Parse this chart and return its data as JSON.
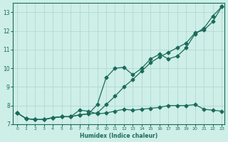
{
  "xlabel": "Humidex (Indice chaleur)",
  "background_color": "#ceeee8",
  "grid_color": "#aed4ce",
  "line_color": "#1a6b5a",
  "xlim": [
    -0.5,
    23.3
  ],
  "ylim": [
    7.0,
    13.5
  ],
  "yticks": [
    7,
    8,
    9,
    10,
    11,
    12,
    13
  ],
  "xticks": [
    0,
    1,
    2,
    3,
    4,
    5,
    6,
    7,
    8,
    9,
    10,
    11,
    12,
    13,
    14,
    15,
    16,
    17,
    18,
    19,
    20,
    21,
    22,
    23
  ],
  "series1_x": [
    0,
    1,
    2,
    3,
    4,
    5,
    6,
    7,
    8,
    9,
    10,
    11,
    12,
    13,
    14,
    15,
    16,
    17,
    18,
    19,
    20,
    21,
    22,
    23
  ],
  "series1_y": [
    7.6,
    7.3,
    7.25,
    7.25,
    7.35,
    7.4,
    7.4,
    7.5,
    7.55,
    8.05,
    9.5,
    10.0,
    10.05,
    9.65,
    10.0,
    10.5,
    10.75,
    10.5,
    10.65,
    11.1,
    11.85,
    12.15,
    12.8,
    13.3
  ],
  "series2_x": [
    0,
    1,
    2,
    3,
    4,
    5,
    6,
    7,
    8,
    9,
    10,
    11,
    12,
    13,
    14,
    15,
    16,
    17,
    18,
    19,
    20,
    21,
    22,
    23
  ],
  "series2_y": [
    7.6,
    7.3,
    7.25,
    7.25,
    7.35,
    7.4,
    7.4,
    7.5,
    7.55,
    7.6,
    8.05,
    8.5,
    9.0,
    9.4,
    9.85,
    10.3,
    10.6,
    10.85,
    11.1,
    11.35,
    11.9,
    12.05,
    12.5,
    13.3
  ],
  "series3_x": [
    0,
    1,
    2,
    3,
    4,
    5,
    6,
    7,
    8,
    9,
    10,
    11,
    12,
    13,
    14,
    15,
    16,
    17,
    18,
    19,
    20,
    21,
    22,
    23
  ],
  "series3_y": [
    7.6,
    7.3,
    7.25,
    7.25,
    7.35,
    7.4,
    7.4,
    7.75,
    7.7,
    7.55,
    7.6,
    7.7,
    7.8,
    7.75,
    7.8,
    7.85,
    7.9,
    8.0,
    8.0,
    8.0,
    8.05,
    7.8,
    7.75,
    7.7
  ]
}
